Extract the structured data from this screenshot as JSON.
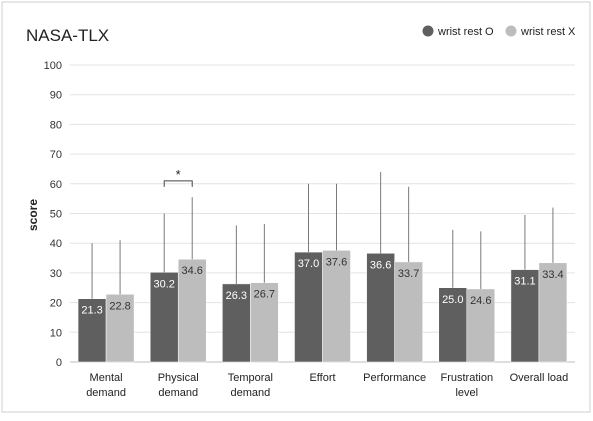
{
  "chart_data": {
    "type": "bar",
    "title": "NASA-TLX",
    "xlabel": "",
    "ylabel": "score",
    "ylim": [
      0,
      100
    ],
    "yticks": [
      0,
      10,
      20,
      30,
      40,
      50,
      60,
      70,
      80,
      90,
      100
    ],
    "grid": true,
    "legend_position": "top-right",
    "categories": [
      [
        "Mental",
        "demand"
      ],
      [
        "Physical",
        "demand"
      ],
      [
        "Temporal",
        "demand"
      ],
      [
        "Effort"
      ],
      [
        "Performance"
      ],
      [
        "Frustration",
        "level"
      ],
      [
        "Overall load"
      ]
    ],
    "series": [
      {
        "name": "wrist rest O",
        "color": "#5f5f5f",
        "values": [
          21.3,
          30.2,
          26.3,
          37.0,
          36.6,
          25.0,
          31.1
        ],
        "value_labels": [
          "21.3",
          "30.2",
          "26.3",
          "37.0",
          "36.6",
          "25.0",
          "31.1"
        ],
        "error_upper": [
          40,
          50,
          46,
          60,
          64,
          44.5,
          49.5
        ]
      },
      {
        "name": "wrist rest X",
        "color": "#bdbdbd",
        "values": [
          22.8,
          34.6,
          26.7,
          37.6,
          33.7,
          24.6,
          33.4
        ],
        "value_labels": [
          "22.8",
          "34.6",
          "26.7",
          "37.6",
          "33.7",
          "24.6",
          "33.4"
        ],
        "error_upper": [
          41,
          55.5,
          46.5,
          60,
          59,
          44,
          52
        ]
      }
    ],
    "annotations": [
      {
        "text": "*",
        "category_index": 1,
        "y": 61
      }
    ]
  }
}
